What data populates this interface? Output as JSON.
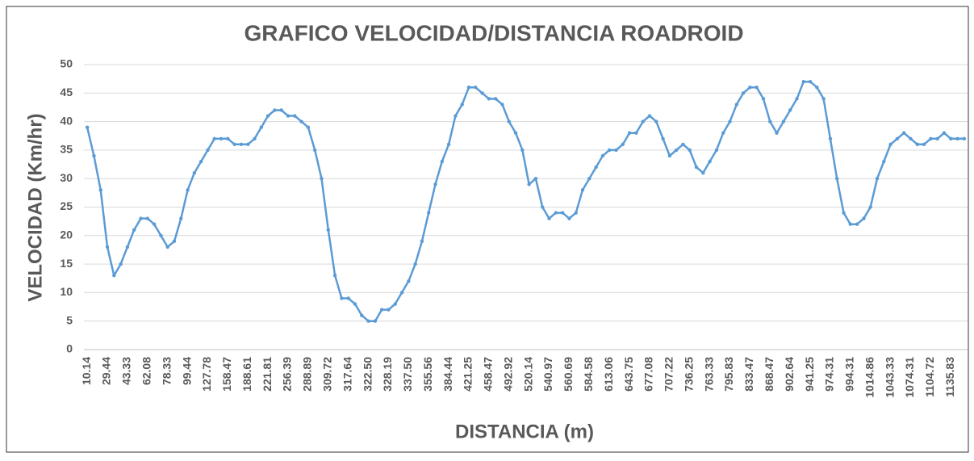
{
  "chart_data": {
    "type": "line",
    "title": "GRAFICO VELOCIDAD/DISTANCIA   ROADROID",
    "x_label": "DISTANCIA (m)",
    "y_label": "VELOCIDAD (Km/hr)",
    "categories": [
      "10.14",
      null,
      null,
      "29.44",
      null,
      null,
      "43.33",
      null,
      null,
      "62.08",
      null,
      null,
      "78.33",
      null,
      null,
      "99.44",
      null,
      null,
      "127.78",
      null,
      null,
      "158.47",
      null,
      null,
      "188.61",
      null,
      null,
      "221.81",
      null,
      null,
      "256.39",
      null,
      null,
      "288.89",
      null,
      null,
      "309.72",
      null,
      null,
      "317.64",
      null,
      null,
      "322.50",
      null,
      null,
      "328.19",
      null,
      null,
      "337.50",
      null,
      null,
      "355.56",
      null,
      null,
      "384.44",
      null,
      null,
      "421.25",
      null,
      null,
      "458.47",
      null,
      null,
      "492.92",
      null,
      null,
      "520.14",
      null,
      null,
      "540.97",
      null,
      null,
      "560.69",
      null,
      null,
      "584.58",
      null,
      null,
      "613.06",
      null,
      null,
      "643.75",
      null,
      null,
      "677.08",
      null,
      null,
      "707.22",
      null,
      null,
      "736.25",
      null,
      null,
      "763.33",
      null,
      null,
      "795.83",
      null,
      null,
      "833.47",
      null,
      null,
      "868.47",
      null,
      null,
      "902.64",
      null,
      null,
      "941.25",
      null,
      null,
      "974.31",
      null,
      null,
      "994.31",
      null,
      null,
      "1014.86",
      null,
      null,
      "1043.33",
      null,
      null,
      "1074.31",
      null,
      null,
      "1104.72",
      null,
      null,
      "1135.83",
      null,
      null
    ],
    "series": [
      {
        "name": "VELOCIDAD",
        "color": "#5b9bd5",
        "values": [
          39,
          34,
          28,
          18,
          13,
          15,
          18,
          21,
          23,
          23,
          22,
          20,
          18,
          19,
          23,
          28,
          31,
          33,
          35,
          37,
          37,
          37,
          36,
          36,
          36,
          37,
          39,
          41,
          42,
          42,
          41,
          41,
          40,
          39,
          35,
          30,
          21,
          13,
          9,
          9,
          8,
          6,
          5,
          5,
          7,
          7,
          8,
          10,
          12,
          15,
          19,
          24,
          29,
          33,
          36,
          41,
          43,
          46,
          46,
          45,
          44,
          44,
          43,
          40,
          38,
          35,
          29,
          30,
          25,
          23,
          24,
          24,
          23,
          24,
          28,
          30,
          32,
          34,
          35,
          35,
          36,
          38,
          38,
          40,
          41,
          40,
          37,
          34,
          35,
          36,
          35,
          32,
          31,
          33,
          35,
          38,
          40,
          43,
          45,
          46,
          46,
          44,
          40,
          38,
          40,
          42,
          44,
          47,
          47,
          46,
          44,
          37,
          30,
          24,
          22,
          22,
          23,
          25,
          30,
          33,
          36,
          37,
          38,
          37,
          36,
          36,
          37,
          37,
          38,
          37,
          37,
          37
        ]
      }
    ],
    "ylim": [
      0,
      50
    ],
    "yticks": [
      0,
      5,
      10,
      15,
      20,
      25,
      30,
      35,
      40,
      45,
      50
    ],
    "grid": true
  }
}
